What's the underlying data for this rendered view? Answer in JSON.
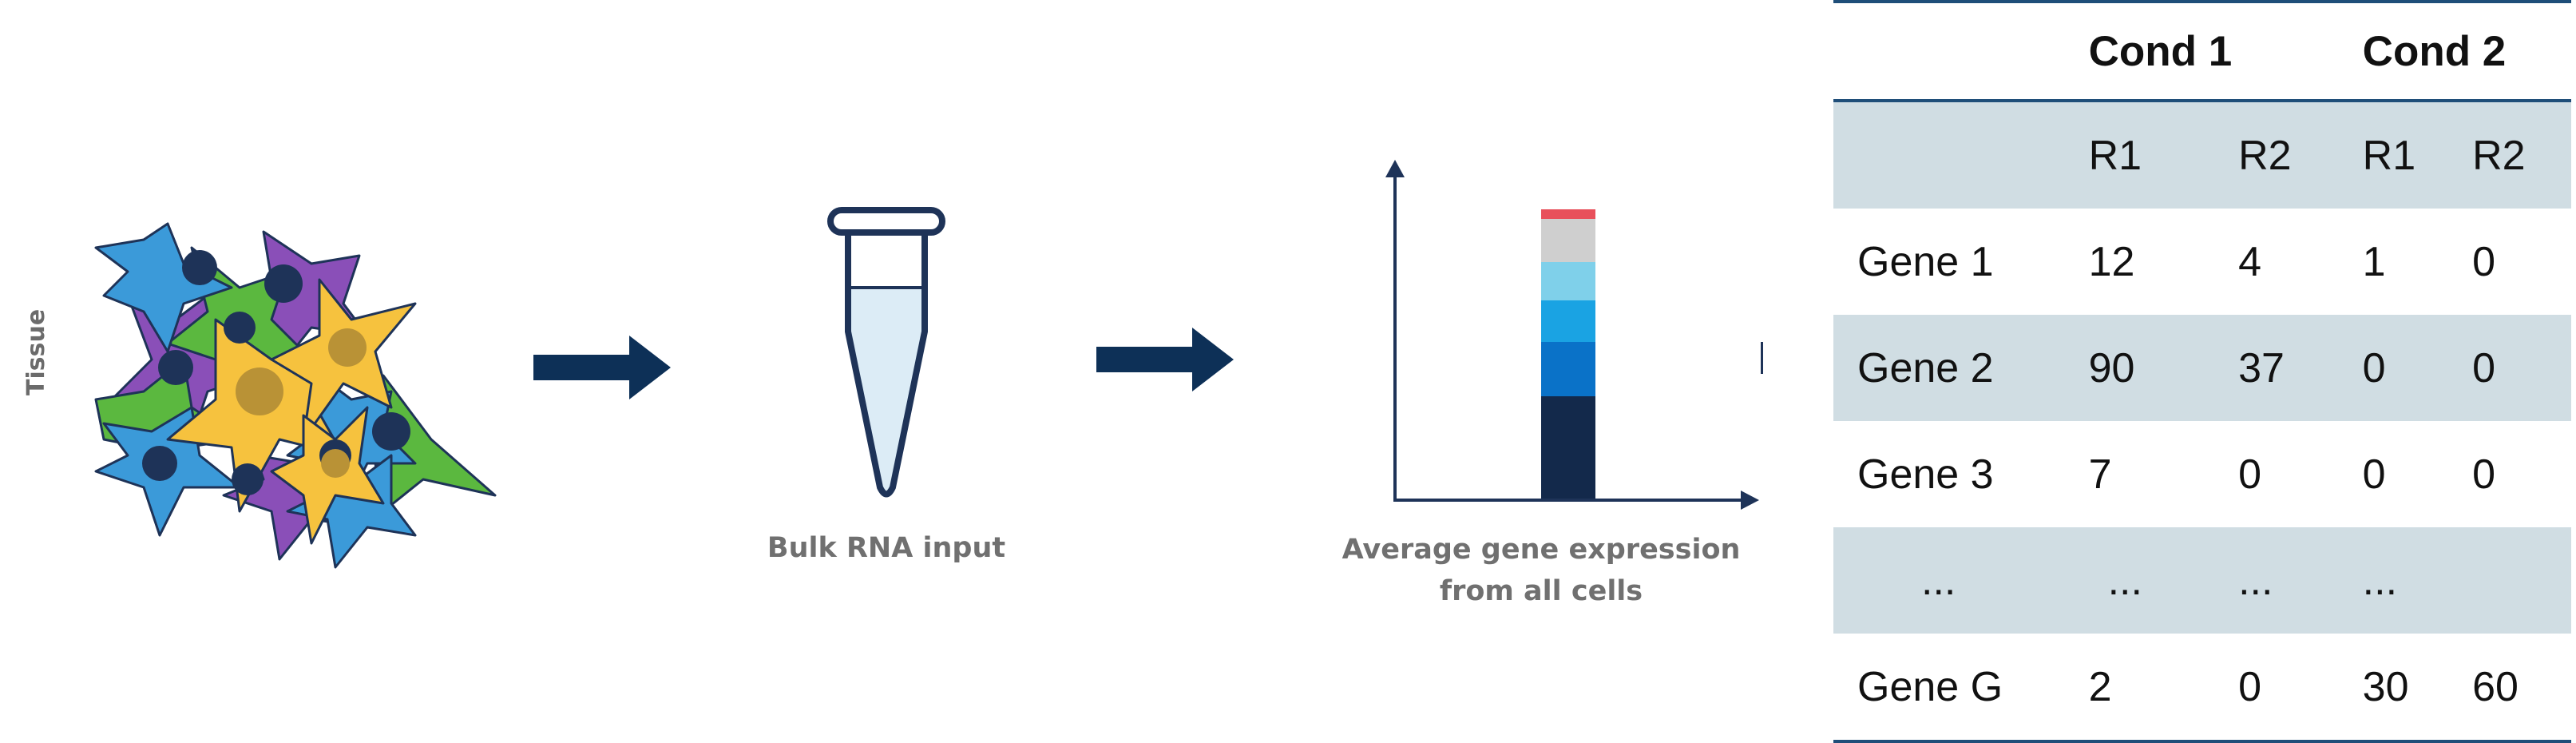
{
  "diagram": {
    "tissue_label": "Tissue",
    "tube_caption": "Bulk RNA input",
    "chart_caption_line1": "Average gene expression",
    "chart_caption_line2": "from all cells",
    "colors": {
      "arrow": "#0d3057",
      "cell_blue": "#3b9ad9",
      "cell_purple": "#8a4fb8",
      "cell_green": "#5bb83f",
      "cell_yellow": "#f6c23e",
      "nucleus_dark": "#1e3358",
      "tube_stroke": "#1e3358",
      "tube_fill": "#dcecf6",
      "bar_red": "#e8505b",
      "bar_grey": "#cfcfcf",
      "bar_light_blue": "#7fd0ea",
      "bar_mid_blue": "#1aa3e3",
      "bar_blue": "#0a72c8",
      "bar_navy": "#13294b"
    }
  },
  "table": {
    "header": [
      "",
      "Cond 1",
      "Cond 2"
    ],
    "subheader": [
      "",
      "R1",
      "R2",
      "R1",
      "R2"
    ],
    "rows": [
      [
        "Gene 1",
        "12",
        "4",
        "1",
        "0"
      ],
      [
        "Gene 2",
        "90",
        "37",
        "0",
        "0"
      ],
      [
        "Gene 3",
        "7",
        "0",
        "0",
        "0"
      ],
      [
        "...",
        "...",
        "...",
        "...",
        ""
      ],
      [
        "Gene G",
        "2",
        "0",
        "30",
        "60"
      ]
    ]
  }
}
